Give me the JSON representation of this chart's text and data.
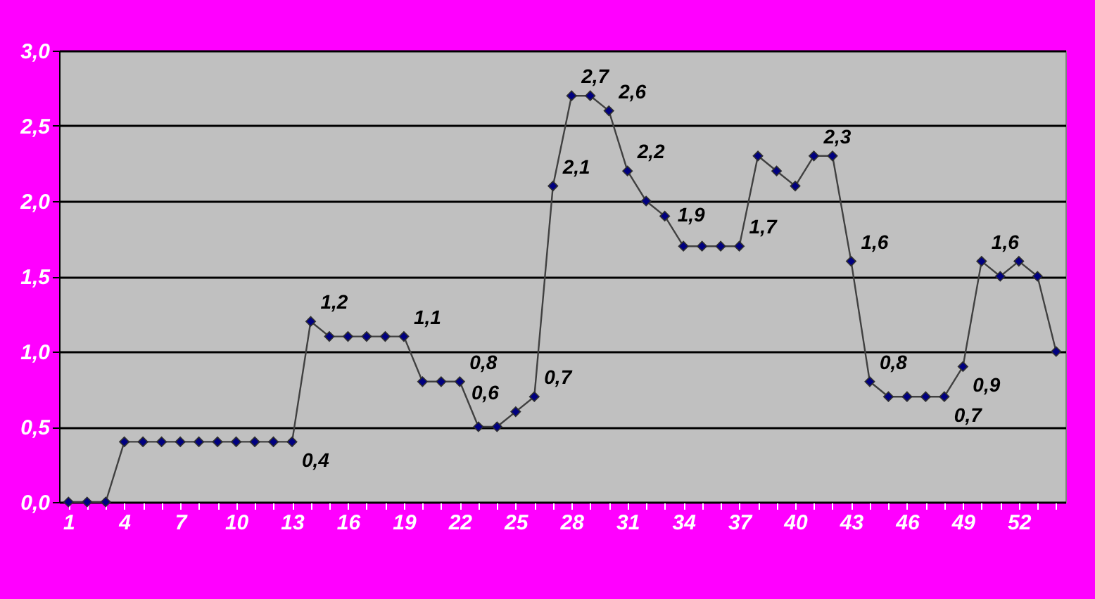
{
  "chart_data": {
    "type": "line",
    "categories": [
      "1",
      null,
      null,
      "4",
      null,
      null,
      "7",
      null,
      null,
      "10",
      null,
      null,
      "13",
      null,
      null,
      "16",
      null,
      null,
      "19",
      null,
      null,
      "22",
      null,
      null,
      "25",
      null,
      null,
      "28",
      null,
      null,
      "31",
      null,
      null,
      "34",
      null,
      null,
      "37",
      null,
      null,
      "40",
      null,
      null,
      "43",
      null,
      null,
      "46",
      null,
      null,
      "49",
      null,
      null,
      "52",
      null,
      null
    ],
    "series": [
      {
        "color": "#000080",
        "values": [
          0,
          0,
          0,
          0.4,
          0.4,
          0.4,
          0.4,
          0.4,
          0.4,
          0.4,
          0.4,
          0.4,
          0.4,
          1.2,
          1.1,
          1.1,
          1.1,
          1.1,
          1.1,
          0.8,
          0.8,
          0.8,
          0.5,
          0.5,
          0.6,
          0.7,
          2.1,
          2.7,
          2.7,
          2.6,
          2.2,
          2.0,
          1.9,
          1.7,
          1.7,
          1.7,
          1.7,
          2.3,
          2.2,
          2.1,
          2.3,
          2.3,
          1.6,
          0.8,
          0.7,
          0.7,
          0.7,
          0.7,
          0.9,
          1.6,
          1.5,
          1.6,
          1.5,
          1.0
        ],
        "value_labels": [
          null,
          null,
          null,
          null,
          null,
          null,
          null,
          null,
          null,
          null,
          null,
          null,
          "0,4",
          "1,2",
          null,
          null,
          null,
          null,
          "1,1",
          null,
          null,
          "0,8",
          null,
          null,
          "0,6",
          "0,7",
          "2,1",
          "2,7",
          null,
          "2,6",
          "2,2",
          null,
          "1,9",
          null,
          null,
          null,
          "1,7",
          null,
          null,
          null,
          "2,3",
          null,
          "1,6",
          "0,8",
          null,
          null,
          null,
          "0,7",
          "0,9",
          "1,6",
          null,
          null,
          null,
          null
        ]
      }
    ],
    "ylim": [
      0,
      3
    ],
    "yticks": [
      {
        "value": 0,
        "label": "0,0"
      },
      {
        "value": 0.5,
        "label": "0,5"
      },
      {
        "value": 1,
        "label": "1,0"
      },
      {
        "value": 1.5,
        "label": "1,5"
      },
      {
        "value": 2,
        "label": "2,0"
      },
      {
        "value": 2.5,
        "label": "2,5"
      },
      {
        "value": 3,
        "label": "3,0"
      }
    ],
    "grid": "y",
    "marker": "diamond",
    "line_style": "solid"
  }
}
